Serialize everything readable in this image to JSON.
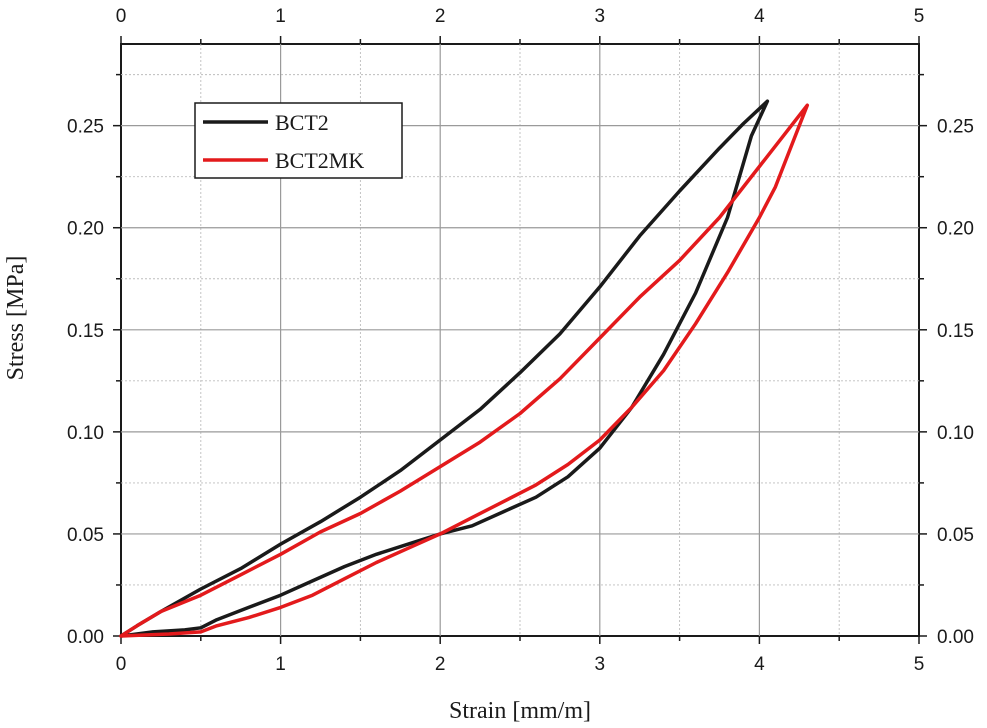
{
  "chart_data": {
    "type": "line",
    "title": "",
    "xlabel": "Strain [mm/m]",
    "ylabel": "Stress [MPa]",
    "xlim": [
      0,
      5
    ],
    "ylim": [
      0,
      0.29
    ],
    "xticks": [
      0,
      1,
      2,
      3,
      4,
      5
    ],
    "yticks": [
      0.0,
      0.05,
      0.1,
      0.15,
      0.2,
      0.25
    ],
    "xtick_labels": [
      "0",
      "1",
      "2",
      "3",
      "4",
      "5"
    ],
    "ytick_labels": [
      "0.00",
      "0.05",
      "0.10",
      "0.15",
      "0.20",
      "0.25"
    ],
    "grid": true,
    "legend_position": "top-left",
    "series": [
      {
        "name": "BCT2",
        "color": "#1a1a1a",
        "x": [
          0,
          0.1,
          0.25,
          0.5,
          0.75,
          1.0,
          1.25,
          1.5,
          1.75,
          2.0,
          2.25,
          2.5,
          2.75,
          3.0,
          3.25,
          3.5,
          3.75,
          3.9,
          4.05,
          3.95,
          3.8,
          3.6,
          3.4,
          3.2,
          3.0,
          2.8,
          2.6,
          2.4,
          2.2,
          2.0,
          1.8,
          1.6,
          1.4,
          1.2,
          1.0,
          0.8,
          0.6,
          0.5,
          0.4,
          0.2,
          0
        ],
        "y": [
          0,
          0.005,
          0.012,
          0.023,
          0.033,
          0.045,
          0.056,
          0.068,
          0.081,
          0.096,
          0.111,
          0.129,
          0.148,
          0.171,
          0.196,
          0.218,
          0.239,
          0.251,
          0.262,
          0.245,
          0.205,
          0.168,
          0.138,
          0.112,
          0.092,
          0.078,
          0.068,
          0.061,
          0.054,
          0.05,
          0.045,
          0.04,
          0.034,
          0.027,
          0.02,
          0.014,
          0.008,
          0.004,
          0.003,
          0.002,
          0
        ]
      },
      {
        "name": "BCT2MK",
        "color": "#e31a1c",
        "x": [
          0,
          0.1,
          0.25,
          0.5,
          0.75,
          1.0,
          1.25,
          1.5,
          1.75,
          2.0,
          2.25,
          2.5,
          2.75,
          3.0,
          3.25,
          3.5,
          3.75,
          4.0,
          4.15,
          4.3,
          4.2,
          4.1,
          4.0,
          3.8,
          3.6,
          3.4,
          3.2,
          3.0,
          2.8,
          2.6,
          2.4,
          2.2,
          2.0,
          1.8,
          1.6,
          1.4,
          1.2,
          1.0,
          0.8,
          0.6,
          0.5,
          0.3,
          0
        ],
        "y": [
          0,
          0.005,
          0.012,
          0.02,
          0.03,
          0.04,
          0.051,
          0.06,
          0.071,
          0.083,
          0.095,
          0.109,
          0.126,
          0.146,
          0.166,
          0.184,
          0.205,
          0.23,
          0.245,
          0.26,
          0.24,
          0.22,
          0.205,
          0.178,
          0.153,
          0.13,
          0.112,
          0.096,
          0.084,
          0.074,
          0.066,
          0.058,
          0.05,
          0.043,
          0.036,
          0.028,
          0.02,
          0.014,
          0.009,
          0.005,
          0.002,
          0.001,
          0
        ]
      }
    ]
  }
}
